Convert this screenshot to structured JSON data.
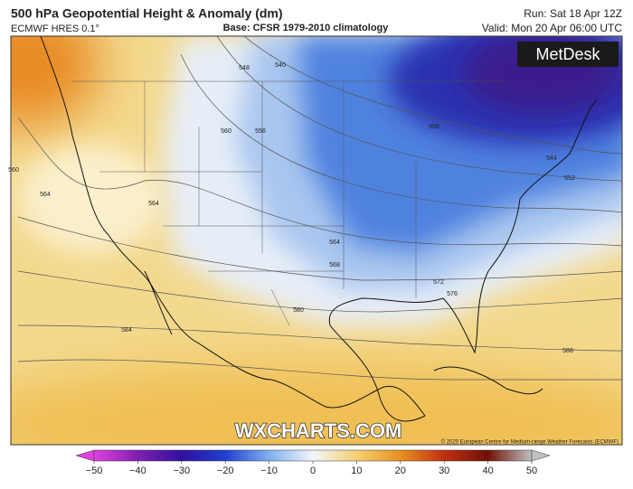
{
  "header": {
    "title": "500 hPa Geopotential Height & Anomaly (dm)",
    "model": "ECMWF HRES 0.1°",
    "base": "Base: CFSR 1979-2010 climatology",
    "run": "Run: Sat 18 Apr 12Z",
    "valid": "Valid: Mon 20 Apr 06:00 UTC"
  },
  "logo": "MetDesk",
  "watermark": "WXCHARTS.COM",
  "copyright": "© 2020 European Centre for Medium-range Weather Forecasts (ECMWF)",
  "contour_labels": [
    "548",
    "540",
    "560",
    "556",
    "564",
    "564",
    "560",
    "564",
    "568",
    "580",
    "584",
    "572",
    "576",
    "588",
    "544",
    "552",
    "556"
  ],
  "colorbar": {
    "ticks": [
      "−50",
      "−40",
      "−30",
      "−20",
      "−10",
      "0",
      "10",
      "20",
      "30",
      "40",
      "50"
    ]
  }
}
